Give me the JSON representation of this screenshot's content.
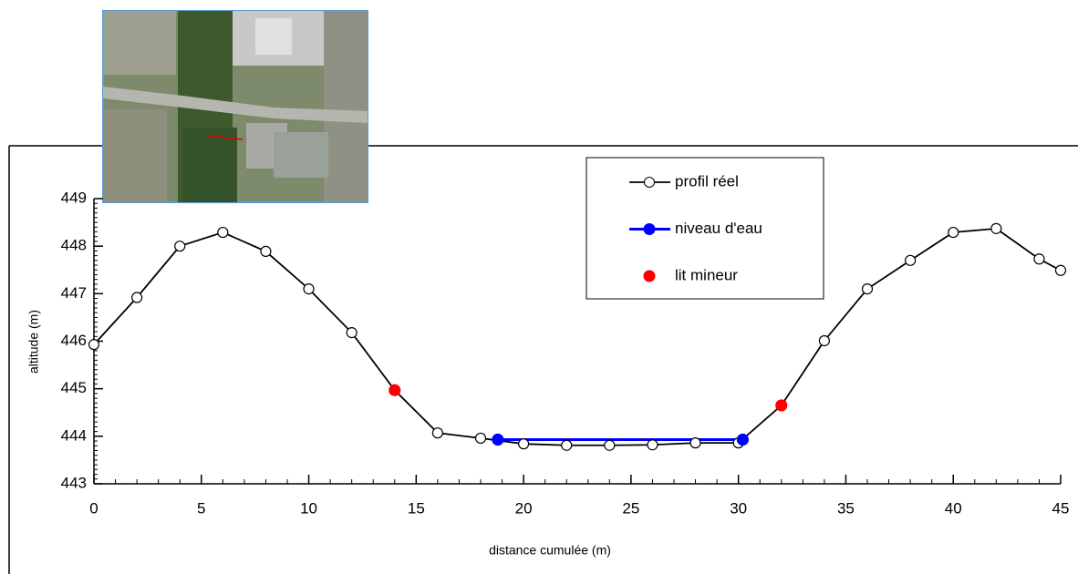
{
  "chart_data": {
    "type": "line",
    "xlabel": "distance cumulée (m)",
    "ylabel": "altitude (m)",
    "xlim": [
      0,
      45
    ],
    "xticks": [
      0,
      5,
      10,
      15,
      20,
      25,
      30,
      35,
      40,
      45
    ],
    "ylim": [
      443,
      449
    ],
    "yticks": [
      443,
      444,
      445,
      446,
      447,
      448,
      449
    ],
    "minor_ticks": true,
    "legend": "top-right",
    "series": [
      {
        "name": "profil réel",
        "color": "#000000",
        "marker": "open",
        "x": [
          0,
          2,
          4,
          6,
          8,
          10,
          12,
          14,
          16,
          18,
          20,
          22,
          24,
          26,
          28,
          30,
          32,
          34,
          36,
          38,
          40,
          42,
          44,
          45
        ],
        "values": [
          445.93,
          446.92,
          448.0,
          448.29,
          447.89,
          447.1,
          446.18,
          444.97,
          444.07,
          443.96,
          443.84,
          443.81,
          443.81,
          443.82,
          443.86,
          443.86,
          444.65,
          446.01,
          447.1,
          447.7,
          448.29,
          448.37,
          447.73,
          447.49
        ]
      },
      {
        "name": "niveau d'eau",
        "color": "#0000ff",
        "marker": "filled",
        "line": true,
        "x": [
          18.8,
          30.2
        ],
        "values": [
          443.93,
          443.93
        ]
      },
      {
        "name": "lit mineur",
        "color": "#ff0000",
        "marker": "filled",
        "line": false,
        "x": [
          14,
          32
        ],
        "values": [
          444.97,
          444.65
        ]
      }
    ]
  }
}
